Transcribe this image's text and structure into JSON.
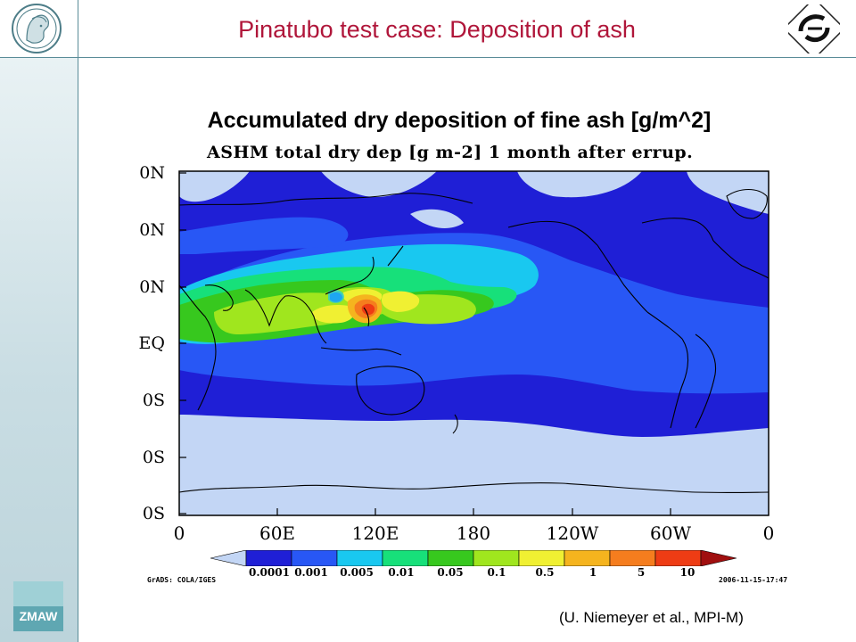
{
  "slide": {
    "title": "Pinatubo test case: Deposition of ash",
    "subtitle": "Accumulated dry deposition of fine ash [g/m^2]",
    "credit": "(U. Niemeyer et al., MPI-M)"
  },
  "logos": {
    "left": "max-planck-minerva-icon",
    "right": "institute-logo-icon",
    "bottom_left": "zmaw-logo-icon",
    "bottom_left_text": "ZMAW"
  },
  "plot": {
    "title": "ASHM total dry dep [g m-2] 1 month after errup.",
    "lat_labels": [
      "0N",
      "0N",
      "0N",
      "EQ",
      "0S",
      "0S",
      "0S"
    ],
    "lon_labels": [
      "0",
      "60E",
      "120E",
      "180",
      "120W",
      "60W",
      "0"
    ],
    "footer_left": "GrADS: COLA/IGES",
    "footer_right": "2006-11-15-17:47"
  },
  "colorbar": {
    "labels": [
      "0.0001",
      "0.001",
      "0.005",
      "0.01",
      "0.05",
      "0.1",
      "0.5",
      "1",
      "5",
      "10"
    ],
    "colors": [
      "#c3d6f5",
      "#1f1fd6",
      "#2857f5",
      "#19c8f0",
      "#17e07a",
      "#37c81e",
      "#a0e61e",
      "#f0f032",
      "#f5b41e",
      "#f57d1e",
      "#ee3c14",
      "#a00f0f"
    ]
  },
  "colors": {
    "title": "#b0163a",
    "land_outline": "#000000",
    "background_field": "#c3d6f5"
  }
}
